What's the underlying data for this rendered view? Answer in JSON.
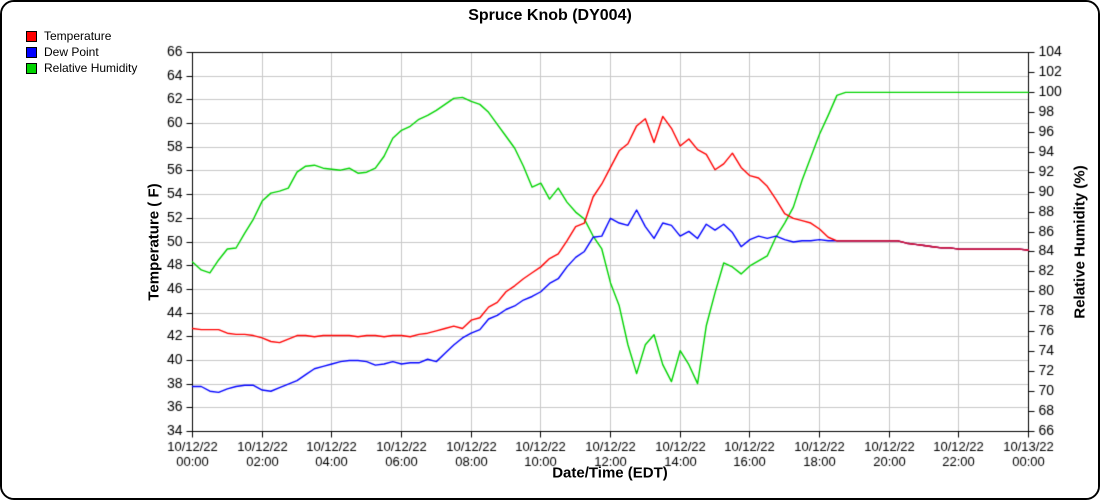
{
  "chart_data": {
    "type": "line",
    "title": "Spruce Knob (DY004)",
    "xlabel": "Date/Time (EDT)",
    "ylabel_left": "Temperature ( F)",
    "ylabel_right": "Relative Humidity (%)",
    "grid": true,
    "grid_color": "#c8c8c8",
    "axis_color": "#000000",
    "background_color": "#ffffff",
    "legend_position": "top-left",
    "legend": [
      {
        "label": "Temperature",
        "color": "#ff0000"
      },
      {
        "label": "Dew Point",
        "color": "#0000ff"
      },
      {
        "label": "Relative Humidity",
        "color": "#00d400"
      }
    ],
    "left_axis": {
      "min": 34,
      "max": 66,
      "step": 2
    },
    "right_axis": {
      "min": 66,
      "max": 104,
      "step": 2
    },
    "x_max_hours": 24,
    "x_ticks": [
      {
        "hour": 0,
        "line1": "10/12/22",
        "line2": "00:00"
      },
      {
        "hour": 2,
        "line1": "10/12/22",
        "line2": "02:00"
      },
      {
        "hour": 4,
        "line1": "10/12/22",
        "line2": "04:00"
      },
      {
        "hour": 6,
        "line1": "10/12/22",
        "line2": "06:00"
      },
      {
        "hour": 8,
        "line1": "10/12/22",
        "line2": "08:00"
      },
      {
        "hour": 10,
        "line1": "10/12/22",
        "line2": "10:00"
      },
      {
        "hour": 12,
        "line1": "10/12/22",
        "line2": "12:00"
      },
      {
        "hour": 14,
        "line1": "10/12/22",
        "line2": "14:00"
      },
      {
        "hour": 16,
        "line1": "10/12/22",
        "line2": "16:00"
      },
      {
        "hour": 18,
        "line1": "10/12/22",
        "line2": "18:00"
      },
      {
        "hour": 20,
        "line1": "10/12/22",
        "line2": "20:00"
      },
      {
        "hour": 22,
        "line1": "10/12/22",
        "line2": "22:00"
      },
      {
        "hour": 24,
        "line1": "10/13/22",
        "line2": "00:00"
      }
    ],
    "x_step_hours": 0.25,
    "overlap_color": "#c41742",
    "series": [
      {
        "name": "Temperature",
        "axis": "left",
        "color": "#ff0000",
        "values": [
          42.7,
          42.6,
          42.6,
          42.6,
          42.3,
          42.2,
          42.2,
          42.1,
          41.9,
          41.6,
          41.5,
          41.8,
          42.1,
          42.1,
          42.0,
          42.1,
          42.1,
          42.1,
          42.1,
          42.0,
          42.1,
          42.1,
          42.0,
          42.1,
          42.1,
          42.0,
          42.2,
          42.3,
          42.5,
          42.7,
          42.9,
          42.7,
          43.4,
          43.6,
          44.5,
          44.9,
          45.8,
          46.3,
          46.9,
          47.4,
          47.9,
          48.6,
          49.0,
          50.1,
          51.3,
          51.6,
          53.8,
          54.9,
          56.3,
          57.7,
          58.3,
          59.8,
          60.4,
          58.4,
          60.6,
          59.6,
          58.1,
          58.7,
          57.8,
          57.4,
          56.1,
          56.6,
          57.5,
          56.3,
          55.6,
          55.4,
          54.7,
          53.6,
          52.4,
          52.0,
          51.8,
          51.6,
          51.1,
          50.4,
          50.1,
          50.1,
          50.1,
          50.1,
          50.1,
          50.1,
          50.1,
          50.1,
          49.9,
          49.8,
          49.7,
          49.6,
          49.5,
          49.5,
          49.4,
          49.4,
          49.4,
          49.4,
          49.4,
          49.4,
          49.4,
          49.4,
          49.3
        ]
      },
      {
        "name": "Dew Point",
        "axis": "left",
        "color": "#0000ff",
        "values": [
          37.8,
          37.8,
          37.4,
          37.3,
          37.6,
          37.8,
          37.9,
          37.9,
          37.5,
          37.4,
          37.7,
          38.0,
          38.3,
          38.8,
          39.3,
          39.5,
          39.7,
          39.9,
          40.0,
          40.0,
          39.9,
          39.6,
          39.7,
          39.9,
          39.7,
          39.8,
          39.8,
          40.1,
          39.9,
          40.6,
          41.3,
          41.9,
          42.3,
          42.6,
          43.5,
          43.8,
          44.3,
          44.6,
          45.1,
          45.4,
          45.8,
          46.5,
          46.9,
          47.9,
          48.7,
          49.2,
          50.4,
          50.5,
          52.0,
          51.6,
          51.4,
          52.7,
          51.3,
          50.3,
          51.6,
          51.4,
          50.5,
          50.9,
          50.3,
          51.5,
          51.0,
          51.5,
          50.8,
          49.6,
          50.2,
          50.5,
          50.3,
          50.5,
          50.2,
          50.0,
          50.1,
          50.1,
          50.2,
          50.1,
          50.1,
          50.1,
          50.1,
          50.1,
          50.1,
          50.1,
          50.1,
          50.1,
          49.9,
          49.8,
          49.7,
          49.6,
          49.5,
          49.5,
          49.4,
          49.4,
          49.4,
          49.4,
          49.4,
          49.4,
          49.4,
          49.4,
          49.3
        ]
      },
      {
        "name": "Relative Humidity",
        "axis": "right",
        "color": "#00d400",
        "values": [
          83.0,
          82.2,
          81.9,
          83.2,
          84.3,
          84.4,
          85.9,
          87.3,
          89.1,
          89.9,
          90.1,
          90.4,
          92.0,
          92.6,
          92.7,
          92.4,
          92.3,
          92.2,
          92.4,
          91.9,
          92.0,
          92.4,
          93.6,
          95.4,
          96.2,
          96.6,
          97.3,
          97.7,
          98.2,
          98.8,
          99.4,
          99.5,
          99.1,
          98.8,
          98.0,
          96.8,
          95.6,
          94.4,
          92.6,
          90.5,
          90.9,
          89.3,
          90.4,
          89.0,
          88.0,
          87.3,
          85.6,
          84.3,
          80.9,
          78.6,
          74.7,
          71.8,
          74.7,
          75.7,
          72.7,
          71.0,
          74.1,
          72.7,
          70.8,
          76.6,
          79.9,
          82.9,
          82.5,
          81.8,
          82.6,
          83.1,
          83.6,
          85.5,
          86.9,
          88.5,
          91.2,
          93.5,
          95.8,
          97.7,
          99.7,
          100,
          100,
          100,
          100,
          100,
          100,
          100,
          100,
          100,
          100,
          100,
          100,
          100,
          100,
          100,
          100,
          100,
          100,
          100,
          100,
          100,
          100
        ]
      }
    ]
  }
}
